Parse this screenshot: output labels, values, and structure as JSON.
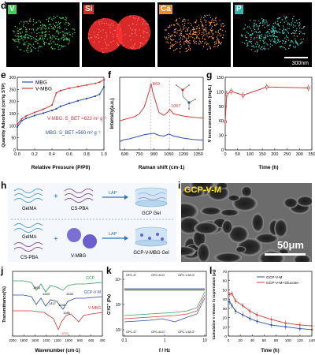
{
  "panels": {
    "d": {
      "label": "d"
    },
    "e": {
      "label": "e"
    },
    "f": {
      "label": "f"
    },
    "g": {
      "label": "g"
    },
    "h": {
      "label": "h"
    },
    "i": {
      "label": "i"
    },
    "j": {
      "label": "j"
    },
    "k": {
      "label": "k"
    },
    "l": {
      "label": "l"
    }
  },
  "eds": {
    "tiles": [
      {
        "element": "V",
        "color": "#3fcf5a"
      },
      {
        "element": "Si",
        "color": "#ff3030"
      },
      {
        "element": "Ca",
        "color": "#ff9a3a"
      },
      {
        "element": "P",
        "color": "#3fd6c9"
      }
    ],
    "scalebar": "300nm"
  },
  "schematic": {
    "row1": {
      "a": "GelMA",
      "b": "CS-PBA",
      "arrow": "LAP",
      "product": "GCP Gel"
    },
    "row2": {
      "a": "GelMA",
      "b": "CS-PBA",
      "c": "V-MBG",
      "arrow": "LAP",
      "product": "GCP-V-MBG Gel"
    }
  },
  "sem": {
    "title": "GCP-V-M",
    "scalebar": "50μm"
  },
  "chart_data": [
    {
      "id": "e",
      "type": "line",
      "xlabel": "Relative Pressure (P/P0)",
      "ylabel": "Quantity Adsorbed (cm³/g STP)",
      "xlim": [
        0,
        1
      ],
      "ylim": [
        0,
        300
      ],
      "xticks": [
        "0.0",
        "0.2",
        "0.4",
        "0.6",
        "0.8",
        "1.0"
      ],
      "yticks": [
        "0",
        "50",
        "100",
        "150",
        "200",
        "250",
        "300"
      ],
      "legend": [
        "MBG",
        "V-MBG"
      ],
      "annotations": [
        "V-MBG: S_BET =623 m² g⁻¹",
        "MBG: S_BET =560 m² g⁻¹"
      ],
      "series": [
        {
          "name": "MBG",
          "color": "#2d4fa8",
          "x": [
            0,
            0.05,
            0.1,
            0.2,
            0.3,
            0.4,
            0.45,
            0.5,
            0.6,
            0.7,
            0.8,
            0.9,
            0.95,
            1.0
          ],
          "y": [
            95,
            120,
            130,
            142,
            152,
            163,
            170,
            180,
            192,
            203,
            212,
            222,
            230,
            260
          ]
        },
        {
          "name": "V-MBG",
          "color": "#d33a3a",
          "x": [
            0,
            0.05,
            0.1,
            0.2,
            0.3,
            0.4,
            0.45,
            0.5,
            0.6,
            0.7,
            0.8,
            0.9,
            0.95,
            1.0
          ],
          "y": [
            105,
            128,
            140,
            155,
            168,
            185,
            235,
            245,
            255,
            262,
            268,
            275,
            280,
            290
          ]
        }
      ]
    },
    {
      "id": "f",
      "type": "line",
      "xlabel": "Raman shift (cm-1)",
      "ylabel": "Intensity(a.u.)",
      "xticks": [
        "600",
        "750",
        "900",
        "1050",
        "1200",
        "1350"
      ],
      "peak_labels": [
        "869",
        "1057"
      ],
      "series": [
        {
          "name": "",
          "color": "#d33a3a",
          "x": [
            550,
            600,
            650,
            700,
            750,
            800,
            850,
            869,
            890,
            950,
            1000,
            1050,
            1057,
            1100,
            1200,
            1300,
            1400
          ],
          "y": [
            4.2,
            4.4,
            4.6,
            4.8,
            5.2,
            6.2,
            8.5,
            9.6,
            8.2,
            5.4,
            5.0,
            5.6,
            5.9,
            5.2,
            4.9,
            4.7,
            4.6
          ]
        },
        {
          "name": "",
          "color": "#2d4fa8",
          "x": [
            550,
            600,
            650,
            700,
            750,
            800,
            850,
            900,
            950,
            1000,
            1050,
            1100,
            1200,
            1300,
            1400
          ],
          "y": [
            1.2,
            1.5,
            1.6,
            1.8,
            2.0,
            2.2,
            2.3,
            2.4,
            2.1,
            2.0,
            2.3,
            2.0,
            1.7,
            1.5,
            1.4
          ]
        }
      ]
    },
    {
      "id": "g",
      "type": "line",
      "xlabel": "Time (h)",
      "ylabel": "V ions concentration (mg/L)",
      "xlim": [
        0,
        350
      ],
      "ylim": [
        0,
        150
      ],
      "xticks": [
        "0",
        "50",
        "100",
        "150",
        "200",
        "250",
        "300",
        "350"
      ],
      "yticks": [
        "0",
        "30",
        "60",
        "90",
        "120",
        "150"
      ],
      "series": [
        {
          "name": "",
          "color": "#d33a3a",
          "x": [
            0,
            6,
            24,
            72,
            168,
            336
          ],
          "y": [
            58,
            115,
            121,
            113,
            130,
            128
          ]
        }
      ]
    },
    {
      "id": "j",
      "type": "line",
      "xlabel": "Wavenumber (cm-1)",
      "ylabel": "Transmittance(%)",
      "xticks": [
        "2000",
        "1800",
        "1600",
        "1400",
        "1200",
        "1000",
        "800",
        "600",
        "400"
      ],
      "legend": [
        "GCP",
        "GCP-V-M",
        "V-MBG"
      ],
      "peak_labels": [
        "1654",
        "1540",
        "1417",
        "1246",
        "1085",
        "1033",
        "1037"
      ]
    },
    {
      "id": "k",
      "type": "line",
      "xlabel": "f / Hz",
      "ylabel": "G'/G'' (Pa)",
      "xticks": [
        "0.1",
        "1",
        "10"
      ],
      "yticks": [
        "10²",
        "10³",
        "10⁴"
      ],
      "legend": [
        "GPC-G'",
        "GPC-M-G'",
        "GPC-V-M-G'",
        "GPC-G''",
        "GPC-M-G''",
        "GPC-V-M-G''"
      ]
    },
    {
      "id": "l",
      "type": "line",
      "xlabel": "Time (h)",
      "ylabel": "Cumulative V release in supernatant (μg)",
      "xlim": [
        0,
        140
      ],
      "ylim": [
        0,
        70
      ],
      "xticks": [
        "0",
        "20",
        "40",
        "60",
        "80",
        "100",
        "120",
        "140"
      ],
      "yticks": [
        "0",
        "10",
        "20",
        "30",
        "40",
        "50",
        "60",
        "70"
      ],
      "series": [
        {
          "name": "GCP-V-M",
          "color": "#2d4fa8",
          "x": [
            2,
            6,
            12,
            24,
            36,
            48,
            72,
            96,
            120,
            144
          ],
          "y": [
            37,
            33,
            27,
            23,
            19,
            16,
            12,
            10,
            8,
            7
          ]
        },
        {
          "name": "GCP-V-M+Glucose",
          "color": "#d33a3a",
          "x": [
            2,
            6,
            12,
            24,
            36,
            48,
            72,
            96,
            120,
            144
          ],
          "y": [
            45,
            46,
            38,
            33,
            27,
            23,
            18,
            14,
            12,
            11
          ]
        }
      ]
    }
  ]
}
